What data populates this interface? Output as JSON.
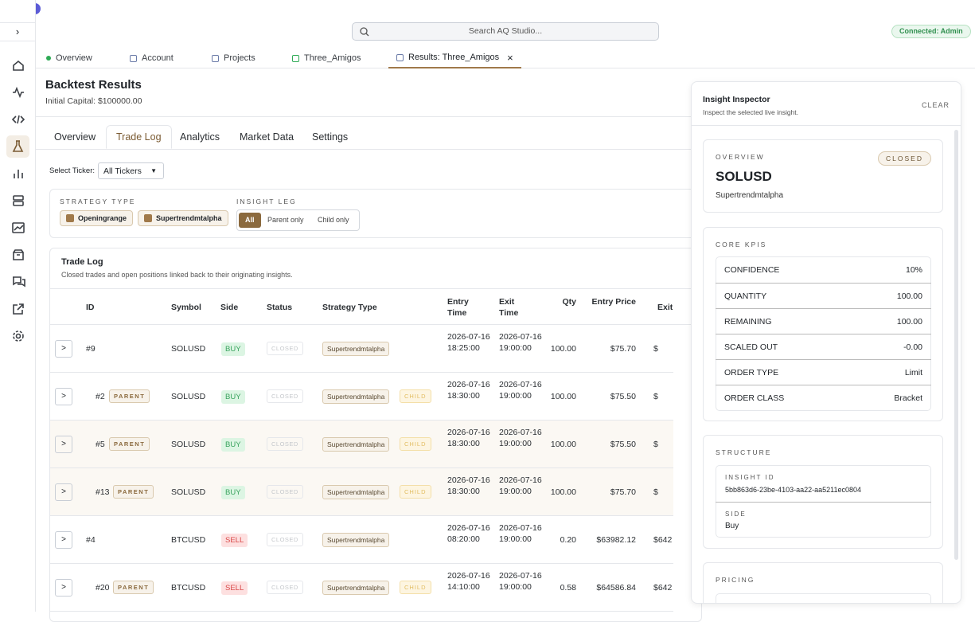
{
  "top": {
    "search": "Search AQ Studio...",
    "status": "Connected: Admin"
  },
  "tabs": [
    "Overview",
    "Account",
    "Projects",
    "Three_Amigos",
    "Results: Three_Amigos"
  ],
  "header": {
    "title": "Backtest Results",
    "subtitle": "Initial Capital: $100000.00"
  },
  "subtabs": [
    "Overview",
    "Trade Log",
    "Analytics",
    "Market Data",
    "Settings"
  ],
  "ticker": {
    "label": "Select Ticker:",
    "value": "All Tickers"
  },
  "filters": {
    "strategy_label": "STRATEGY TYPE",
    "strategies": [
      "Openingrange",
      "Supertrendmtalpha"
    ],
    "leg_label": "INSIGHT LEG",
    "legs": [
      "All",
      "Parent only",
      "Child only"
    ]
  },
  "table": {
    "title": "Trade Log",
    "subtitle": "Closed trades and open positions linked back to their originating insights.",
    "columns": [
      "ID",
      "Symbol",
      "Side",
      "Status",
      "Strategy Type",
      "Entry Time",
      "Exit Time",
      "Qty",
      "Entry Price",
      "Exit"
    ],
    "rows": [
      {
        "toggle": ">",
        "id": "#9",
        "symbol": "SOLUSD",
        "side": "BUY",
        "status": "CLOSED",
        "strategy": "Supertrendmtalpha",
        "entry": "2026-07-16 18:25:00",
        "exit": "2026-07-16 19:00:00",
        "qty": "100.00",
        "entry_price": "$75.70",
        "exit_price": "$"
      },
      {
        "toggle": ">",
        "id": "#2",
        "tag": "PARENT",
        "symbol": "SOLUSD",
        "side": "BUY",
        "status": "CLOSED",
        "strategy": "Supertrendmtalpha",
        "leg": "CHILD",
        "entry": "2026-07-16 18:30:00",
        "exit": "2026-07-16 19:00:00",
        "qty": "100.00",
        "entry_price": "$75.50",
        "exit_price": "$"
      },
      {
        "toggle": ">",
        "id": "#5",
        "tag": "PARENT",
        "symbol": "SOLUSD",
        "side": "BUY",
        "status": "CLOSED",
        "strategy": "Supertrendmtalpha",
        "leg": "CHILD",
        "entry": "2026-07-16 18:30:00",
        "exit": "2026-07-16 19:00:00",
        "qty": "100.00",
        "entry_price": "$75.50",
        "exit_price": "$"
      },
      {
        "toggle": ">",
        "id": "#13",
        "tag": "PARENT",
        "symbol": "SOLUSD",
        "side": "BUY",
        "status": "CLOSED",
        "strategy": "Supertrendmtalpha",
        "leg": "CHILD",
        "entry": "2026-07-16 18:30:00",
        "exit": "2026-07-16 19:00:00",
        "qty": "100.00",
        "entry_price": "$75.70",
        "exit_price": "$"
      },
      {
        "toggle": ">",
        "id": "#4",
        "symbol": "BTCUSD",
        "side": "SELL",
        "status": "CLOSED",
        "strategy": "Supertrendmtalpha",
        "entry": "2026-07-16 08:20:00",
        "exit": "2026-07-16 19:00:00",
        "qty": "0.20",
        "entry_price": "$63982.12",
        "exit_price": "$642"
      },
      {
        "toggle": ">",
        "id": "#20",
        "tag": "PARENT",
        "symbol": "BTCUSD",
        "side": "SELL",
        "status": "CLOSED",
        "strategy": "Supertrendmtalpha",
        "leg": "CHILD",
        "entry": "2026-07-16 14:10:00",
        "exit": "2026-07-16 19:00:00",
        "qty": "0.58",
        "entry_price": "$64586.84",
        "exit_price": "$642"
      }
    ]
  },
  "inspector": {
    "title": "Insight Inspector",
    "subtitle": "Inspect the selected live insight.",
    "clear": "CLEAR",
    "overview": {
      "label": "OVERVIEW",
      "badge": "CLOSED",
      "symbol": "SOLUSD",
      "strategy": "Supertrendmtalpha"
    },
    "kpis": {
      "label": "CORE KPIS",
      "items": [
        {
          "k": "CONFIDENCE",
          "v": "10%"
        },
        {
          "k": "QUANTITY",
          "v": "100.00"
        },
        {
          "k": "REMAINING",
          "v": "100.00"
        },
        {
          "k": "SCALED OUT",
          "v": "-0.00"
        },
        {
          "k": "ORDER TYPE",
          "v": "Limit"
        },
        {
          "k": "ORDER CLASS",
          "v": "Bracket"
        }
      ]
    },
    "structure": {
      "label": "STRUCTURE",
      "id_label": "INSIGHT ID",
      "id": "5bb863d6-23be-4103-aa22-aa5211ec0804",
      "side_label": "SIDE",
      "side": "Buy"
    },
    "pricing": {
      "label": "PRICING"
    }
  }
}
